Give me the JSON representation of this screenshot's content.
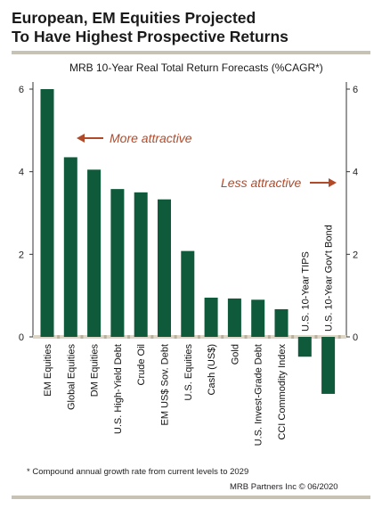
{
  "title_line1": "European, EM Equities Projected",
  "title_line2": "To Have Highest Prospective Returns",
  "footnote": "* Compound annual growth rate from current levels to 2029",
  "source": "MRB Partners Inc © 06/2020",
  "colors": {
    "bar": "#0e5a3a",
    "annotation": "#b24a2a",
    "rule": "#c8c2b4"
  },
  "chart_data": {
    "type": "bar",
    "title": "MRB 10-Year Real Total Return Forecasts (%CAGR*)",
    "categories": [
      "EM Equities",
      "Global Equities",
      "DM Equities",
      "U.S. High-Yield Debt",
      "Crude Oil",
      "EM US$ Sov. Debt",
      "U.S. Equities",
      "Cash (US$)",
      "Gold",
      "U.S. Invest-Grade Debt",
      "CCI Commodity Index",
      "U.S. 10-Year TIPS",
      "U.S. 10-Year Gov't Bond"
    ],
    "values": [
      6.0,
      4.35,
      4.05,
      3.58,
      3.5,
      3.33,
      2.08,
      0.95,
      0.93,
      0.9,
      0.67,
      -0.48,
      -1.38
    ],
    "ylim": [
      -1.6,
      6.3
    ],
    "yticks": [
      0,
      2,
      4,
      6
    ],
    "tick_labels": [
      "0",
      "2",
      "4",
      "6"
    ],
    "annotations": [
      "More attractive",
      "Less attractive"
    ],
    "grid": false,
    "dual_axis": true
  }
}
